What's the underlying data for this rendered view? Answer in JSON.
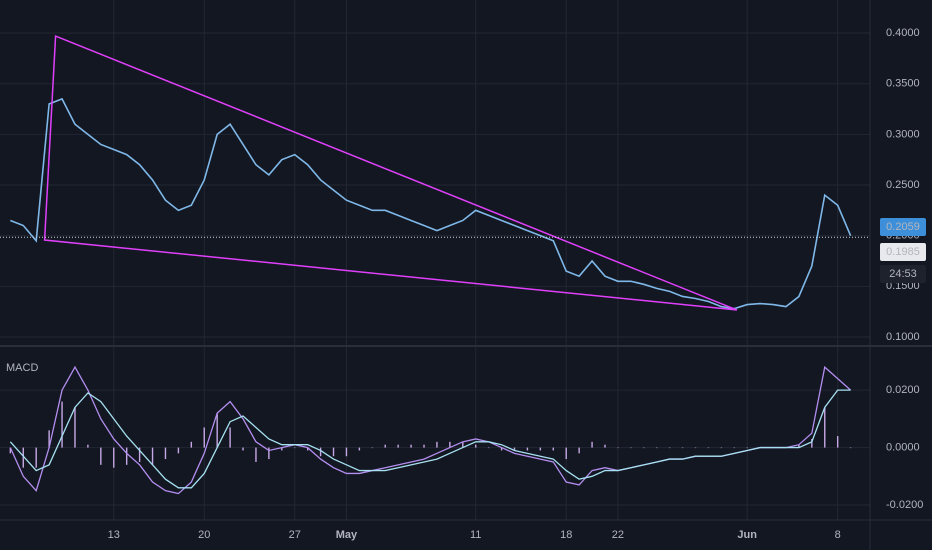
{
  "chart_data": [
    {
      "type": "price",
      "x": [
        5,
        6,
        7,
        8,
        9,
        10,
        11,
        12,
        13,
        14,
        15,
        16,
        17,
        18,
        19,
        20,
        21,
        22,
        23,
        24,
        25,
        26,
        27,
        28,
        29,
        30,
        31,
        32,
        33,
        34,
        35,
        36,
        37,
        38,
        39,
        40,
        41,
        42,
        43,
        44,
        45,
        46,
        47,
        48,
        49,
        50,
        51,
        52,
        53,
        54,
        55,
        56,
        57,
        58,
        59,
        60,
        61,
        62,
        63,
        64,
        65,
        66,
        67,
        68,
        69,
        70
      ],
      "series": [
        {
          "color": "#7fb8e8",
          "values": [
            0.215,
            0.21,
            0.195,
            0.33,
            0.335,
            0.31,
            0.3,
            0.29,
            0.285,
            0.28,
            0.27,
            0.255,
            0.235,
            0.225,
            0.23,
            0.255,
            0.3,
            0.31,
            0.29,
            0.27,
            0.26,
            0.275,
            0.28,
            0.27,
            0.255,
            0.245,
            0.235,
            0.23,
            0.225,
            0.225,
            0.22,
            0.215,
            0.21,
            0.205,
            0.21,
            0.215,
            0.225,
            0.22,
            0.215,
            0.21,
            0.205,
            0.2,
            0.195,
            0.165,
            0.16,
            0.175,
            0.16,
            0.155,
            0.155,
            0.152,
            0.148,
            0.145,
            0.14,
            0.138,
            0.135,
            0.13,
            0.128,
            0.132,
            0.133,
            0.132,
            0.13,
            0.14,
            0.17,
            0.24,
            0.23,
            0.2
          ]
        }
      ],
      "trendline": {
        "color": "#e040fb",
        "x": [
          7.65,
          8.5,
          61.2
        ],
        "y": [
          0.1957,
          0.397,
          0.1267
        ]
      },
      "last_price": 0.1985,
      "price_labels": [
        "0.2059",
        "0.1985",
        "24:53"
      ],
      "xlim": [
        4.2,
        71.5
      ],
      "ylim": [
        0.0921,
        0.4326
      ],
      "yticks": [
        {
          "value": 0.4,
          "label": "0.4000"
        },
        {
          "value": 0.35,
          "label": "0.3500"
        },
        {
          "value": 0.3,
          "label": "0.3000"
        },
        {
          "value": 0.25,
          "label": "0.2500"
        },
        {
          "value": 0.2,
          "label": "0.2000"
        },
        {
          "value": 0.15,
          "label": "0.1500"
        },
        {
          "value": 0.1,
          "label": "0.1000"
        }
      ],
      "xticks": [
        13,
        20,
        27,
        {
          "value": 31,
          "label": "May"
        },
        {
          "value": 41,
          "label": "11"
        },
        {
          "value": 48,
          "label": "18"
        },
        {
          "value": 52,
          "label": "22"
        },
        {
          "value": 62,
          "label": "Jun"
        },
        {
          "value": 69,
          "label": "8"
        }
      ],
      "grid": true
    },
    {
      "type": "macd",
      "title": "MACD",
      "x": [
        5,
        6,
        7,
        8,
        9,
        10,
        11,
        12,
        13,
        14,
        15,
        16,
        17,
        18,
        19,
        20,
        21,
        22,
        23,
        24,
        25,
        26,
        27,
        28,
        29,
        30,
        31,
        32,
        33,
        34,
        35,
        36,
        37,
        38,
        39,
        40,
        41,
        42,
        43,
        44,
        45,
        46,
        47,
        48,
        49,
        50,
        51,
        52,
        53,
        54,
        55,
        56,
        57,
        58,
        59,
        60,
        61,
        62,
        63,
        64,
        65,
        66,
        67,
        68,
        69,
        70
      ],
      "series": [
        {
          "color": "#b48ef0",
          "values": [
            0,
            -0.01,
            -0.015,
            0,
            0.02,
            0.028,
            0.02,
            0.01,
            0.003,
            -0.002,
            -0.006,
            -0.012,
            -0.015,
            -0.016,
            -0.012,
            -0.002,
            0.012,
            0.016,
            0.01,
            0.002,
            -0.001,
            0,
            0.001,
            0,
            -0.004,
            -0.007,
            -0.009,
            -0.009,
            -0.008,
            -0.007,
            -0.006,
            -0.005,
            -0.004,
            -0.002,
            0,
            0.002,
            0.003,
            0.002,
            0,
            -0.002,
            -0.003,
            -0.004,
            -0.005,
            -0.012,
            -0.013,
            -0.008,
            -0.007,
            -0.008,
            -0.007,
            -0.006,
            -0.005,
            -0.004,
            -0.004,
            -0.003,
            -0.003,
            -0.003,
            -0.002,
            -0.001,
            0,
            0,
            0,
            0.001,
            0.005,
            0.028,
            0.024,
            0.02
          ]
        },
        {
          "color": "#a6e0f0",
          "values": [
            0.002,
            -0.003,
            -0.008,
            -0.006,
            0.004,
            0.014,
            0.019,
            0.016,
            0.01,
            0.004,
            -0.001,
            -0.006,
            -0.011,
            -0.014,
            -0.014,
            -0.009,
            0,
            0.009,
            0.011,
            0.007,
            0.003,
            0.001,
            0.001,
            0.001,
            -0.001,
            -0.004,
            -0.006,
            -0.008,
            -0.008,
            -0.008,
            -0.007,
            -0.006,
            -0.005,
            -0.004,
            -0.002,
            0,
            0.002,
            0.002,
            0.001,
            -0.001,
            -0.002,
            -0.003,
            -0.004,
            -0.008,
            -0.011,
            -0.01,
            -0.008,
            -0.008,
            -0.007,
            -0.006,
            -0.005,
            -0.004,
            -0.004,
            -0.003,
            -0.003,
            -0.003,
            -0.002,
            -0.001,
            0,
            0,
            0,
            0,
            0.002,
            0.014,
            0.02,
            0.02
          ]
        }
      ],
      "histogram": {
        "color": "#c7a8e6",
        "values": [
          -0.002,
          -0.007,
          -0.007,
          0.006,
          0.016,
          0.014,
          0.001,
          -0.006,
          -0.007,
          -0.006,
          -0.005,
          -0.006,
          -0.004,
          -0.002,
          0.002,
          0.007,
          0.012,
          0.007,
          -0.001,
          -0.005,
          -0.004,
          -0.001,
          0,
          -0.001,
          -0.003,
          -0.003,
          -0.003,
          -0.001,
          0,
          0.001,
          0.001,
          0.001,
          0.001,
          0.002,
          0.002,
          0.002,
          0.001,
          0,
          -0.001,
          -0.001,
          -0.001,
          -0.001,
          -0.001,
          -0.004,
          -0.002,
          0.002,
          0.001,
          0,
          0,
          0,
          0,
          0,
          0,
          0,
          0,
          0,
          0,
          0,
          0,
          0,
          0,
          0.001,
          0.003,
          0.014,
          0.004,
          0
        ]
      },
      "xlim": [
        4.2,
        71.5
      ],
      "ylim": [
        -0.0252,
        0.035
      ],
      "yticks": [
        {
          "value": 0.02,
          "label": "0.0200"
        },
        {
          "value": 0,
          "label": "0.0000"
        },
        {
          "value": -0.02,
          "label": "-0.0200"
        }
      ],
      "grid": true
    }
  ]
}
